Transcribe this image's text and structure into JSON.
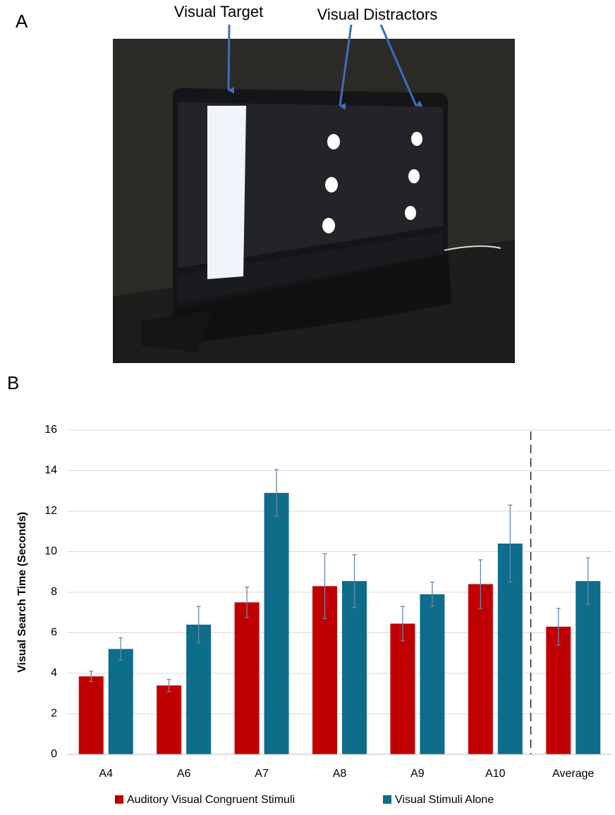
{
  "panel_a": {
    "label": "A",
    "annotations": [
      "Visual Target",
      "Visual Distractors"
    ]
  },
  "chart_data": {
    "type": "bar",
    "panel_label": "B",
    "y_label": "Visual Search Time (Seconds)",
    "categories": [
      "A4",
      "A6",
      "A7",
      "A8",
      "A9",
      "A10",
      "Average"
    ],
    "series": [
      {
        "name": "Auditory Visual Congruent Stimuli",
        "color": "#c00000",
        "values": [
          3.85,
          3.4,
          7.5,
          8.3,
          6.45,
          8.4,
          6.3
        ],
        "errors": [
          0.25,
          0.3,
          0.75,
          1.6,
          0.85,
          1.2,
          0.9
        ]
      },
      {
        "name": "Visual Stimuli Alone",
        "color": "#0e6d8a",
        "values": [
          5.2,
          6.4,
          12.9,
          8.55,
          7.9,
          10.4,
          8.55
        ],
        "errors": [
          0.55,
          0.9,
          1.15,
          1.3,
          0.6,
          1.9,
          1.15
        ]
      }
    ],
    "error_color": "#6a88aa",
    "ylim": [
      0,
      16
    ],
    "yticks": [
      0,
      2,
      4,
      6,
      8,
      10,
      12,
      14,
      16
    ],
    "grid": true
  }
}
